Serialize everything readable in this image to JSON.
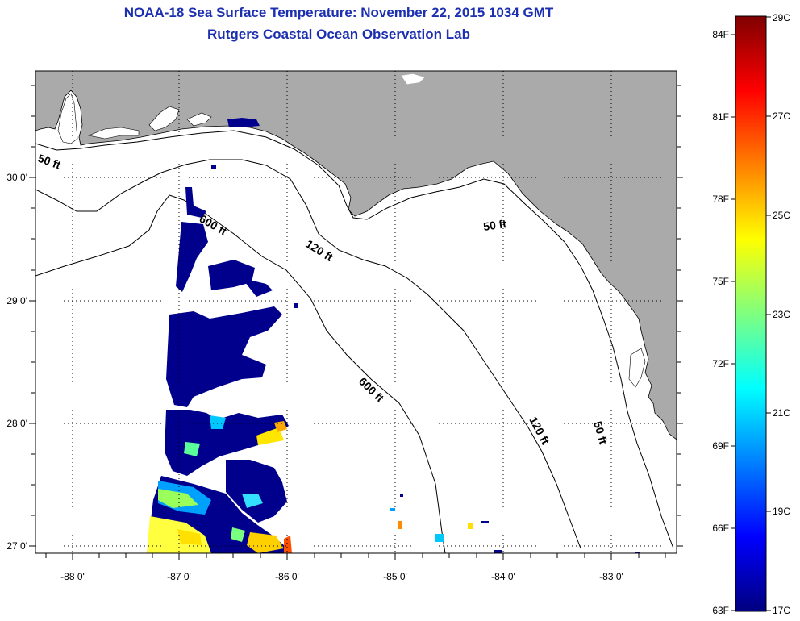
{
  "title_line1": "NOAA-18 Sea Surface Temperature:  November 22, 2015 1034 GMT",
  "title_line2": "Rutgers Coastal Ocean Observation Lab",
  "map": {
    "lon_labels": [
      "-88 0'",
      "-87 0'",
      "-86 0'",
      "-85 0'",
      "-84 0'",
      "-83 0'"
    ],
    "lat_labels": [
      "30 0'",
      "29 0'",
      "28 0'",
      "27 0'"
    ],
    "contour_labels": {
      "c50_west": "50 ft",
      "c50_east": "50 ft",
      "c50_south": "50 ft",
      "c120_north": "120 ft",
      "c120_south": "120 ft",
      "c600_north": "600 ft",
      "c600_south": "600 ft"
    },
    "colors": {
      "land": "#aaaaaa",
      "ocean": "#ffffff",
      "cold_water": "#00008c"
    }
  },
  "colorbar": {
    "f_labels": [
      "84F",
      "81F",
      "78F",
      "75F",
      "72F",
      "69F",
      "66F",
      "63F"
    ],
    "c_labels": [
      "29C",
      "27C",
      "25C",
      "23C",
      "21C",
      "19C",
      "17C"
    ],
    "colors": [
      "#00007f",
      "#0000ff",
      "#00ffff",
      "#ffff00",
      "#ff0000",
      "#7f0000"
    ]
  }
}
